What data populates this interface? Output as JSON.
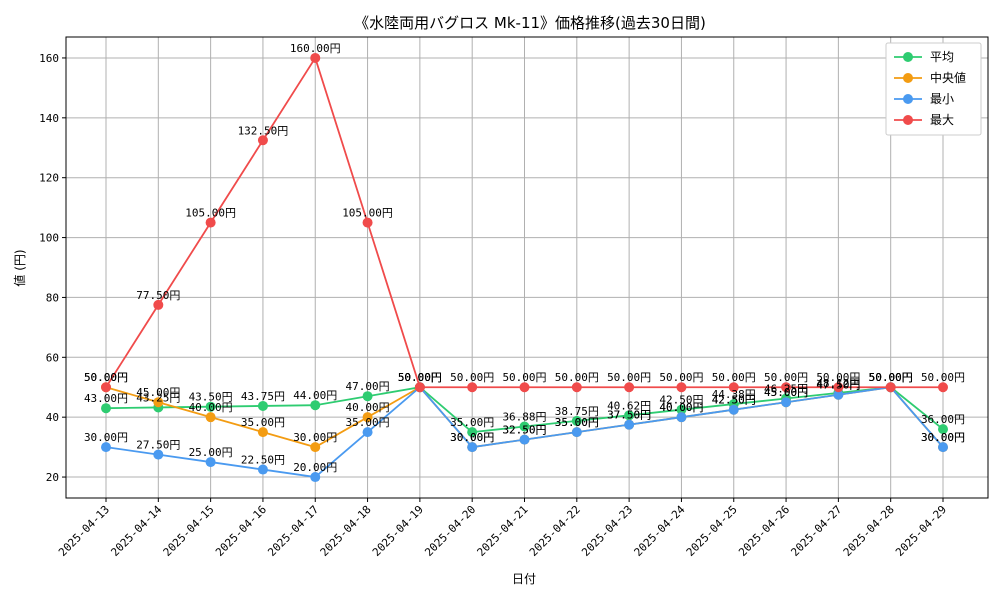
{
  "chart_data": {
    "type": "line",
    "title": "《水陸両用バグロス Mk-11》価格推移(過去30日間)",
    "xlabel": "日付",
    "ylabel": "値 (円)",
    "ylim": [
      13,
      167
    ],
    "yticks": [
      20,
      40,
      60,
      80,
      100,
      120,
      140,
      160
    ],
    "grid": true,
    "legend_position": "top-right",
    "label_suffix": "円",
    "categories": [
      "2025-04-13",
      "2025-04-14",
      "2025-04-15",
      "2025-04-16",
      "2025-04-17",
      "2025-04-18",
      "2025-04-19",
      "2025-04-20",
      "2025-04-21",
      "2025-04-22",
      "2025-04-23",
      "2025-04-24",
      "2025-04-25",
      "2025-04-26",
      "2025-04-27",
      "2025-04-28",
      "2025-04-29"
    ],
    "series": [
      {
        "name": "平均",
        "color": "#2ecc71",
        "values": [
          43.0,
          43.25,
          43.5,
          43.75,
          44.0,
          47.0,
          50.0,
          35.0,
          36.88,
          38.75,
          40.62,
          42.5,
          44.38,
          46.25,
          48.12,
          50.0,
          36.0
        ]
      },
      {
        "name": "中央値",
        "color": "#f39c12",
        "values": [
          50.0,
          45.0,
          40.0,
          35.0,
          30.0,
          40.0,
          50.0,
          30.0,
          32.5,
          35.0,
          37.5,
          40.0,
          42.5,
          45.0,
          47.5,
          50.0,
          30.0
        ]
      },
      {
        "name": "最小",
        "color": "#4a9af0",
        "values": [
          30.0,
          27.5,
          25.0,
          22.5,
          20.0,
          35.0,
          50.0,
          30.0,
          32.5,
          35.0,
          37.5,
          40.0,
          42.5,
          45.0,
          47.5,
          50.0,
          30.0
        ]
      },
      {
        "name": "最大",
        "color": "#f04b4b",
        "values": [
          50.0,
          77.5,
          105.0,
          132.5,
          160.0,
          105.0,
          50.0,
          50.0,
          50.0,
          50.0,
          50.0,
          50.0,
          50.0,
          50.0,
          50.0,
          50.0,
          50.0
        ]
      }
    ]
  }
}
